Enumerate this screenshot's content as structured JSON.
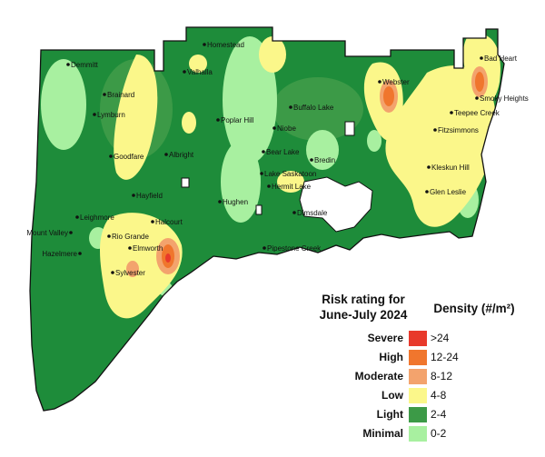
{
  "legend": {
    "title_line1": "Risk rating for",
    "title_line2": "June-July 2024",
    "density_title": "Density (#/m²)",
    "classes": [
      {
        "rating": "Severe",
        "range": ">24",
        "color": "#e8392b"
      },
      {
        "rating": "High",
        "range": "12-24",
        "color": "#f0762d"
      },
      {
        "rating": "Moderate",
        "range": "8-12",
        "color": "#f3a36d"
      },
      {
        "rating": "Low",
        "range": "4-8",
        "color": "#fbf78a"
      },
      {
        "rating": "Light",
        "range": "2-4",
        "color": "#3c9a47"
      },
      {
        "rating": "Minimal",
        "range": "0-2",
        "color": "#a8f0a0"
      }
    ]
  },
  "colors": {
    "base": "#1e8c3a",
    "light": "#3c9a47",
    "minimal": "#a8f0a0",
    "low": "#fbf78a",
    "moderate": "#f3a36d",
    "high": "#f0762d",
    "severe": "#e8392b",
    "border": "#111111"
  },
  "places": [
    {
      "name": "Homestead"
    },
    {
      "name": "Demmitt"
    },
    {
      "name": "Valhalla"
    },
    {
      "name": "Bad Heart"
    },
    {
      "name": "Webster"
    },
    {
      "name": "Smoky Heights"
    },
    {
      "name": "Brainard"
    },
    {
      "name": "Teepee Creek"
    },
    {
      "name": "Lymburn"
    },
    {
      "name": "Buffalo Lake"
    },
    {
      "name": "Poplar Hill"
    },
    {
      "name": "Niobe"
    },
    {
      "name": "Fitzsimmons"
    },
    {
      "name": "Bear Lake"
    },
    {
      "name": "Goodfare"
    },
    {
      "name": "Albright"
    },
    {
      "name": "Bredin"
    },
    {
      "name": "Lake Saskatoon"
    },
    {
      "name": "Kleskun Hill"
    },
    {
      "name": "Hermit Lake"
    },
    {
      "name": "Hayfield"
    },
    {
      "name": "Glen Leslie"
    },
    {
      "name": "Hughen"
    },
    {
      "name": "Leighmore"
    },
    {
      "name": "Dimsdale"
    },
    {
      "name": "Halcourt"
    },
    {
      "name": "Mount Valley"
    },
    {
      "name": "Rio Grande"
    },
    {
      "name": "Elmworth"
    },
    {
      "name": "Pipestone Creek"
    },
    {
      "name": "Hazelmere"
    },
    {
      "name": "Sylvester"
    }
  ]
}
